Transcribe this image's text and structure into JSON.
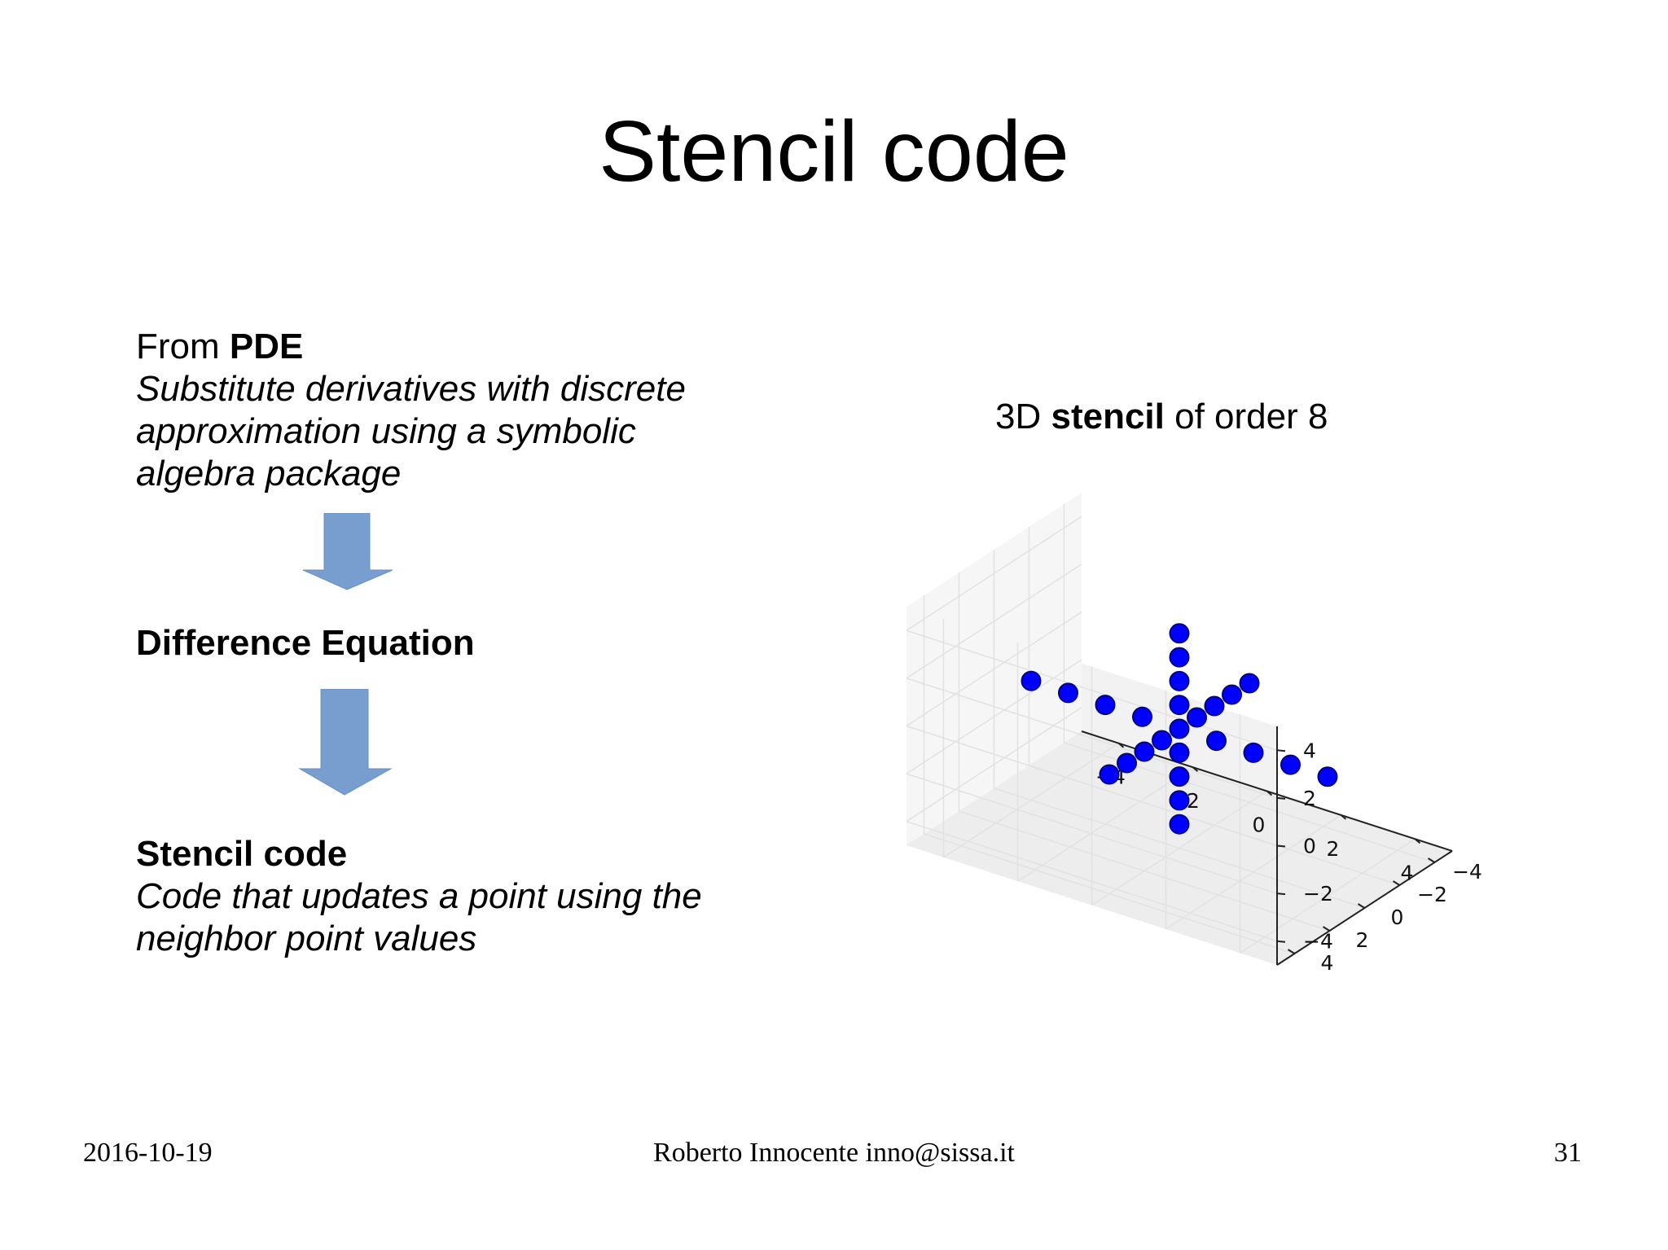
{
  "slide": {
    "title": "Stencil code",
    "block1": {
      "prefix": "From ",
      "bold": "PDE",
      "lines": [
        "Substitute derivatives with discrete",
        "approximation using a symbolic",
        "algebra package"
      ]
    },
    "block2": {
      "bold": "Difference Equation"
    },
    "block3": {
      "bold": "Stencil code",
      "lines": [
        "Code that updates a point using the",
        "neighbor point values"
      ]
    },
    "plot_title": {
      "pre": "3D ",
      "bold": "stencil",
      "mid": " of  ",
      "post": "order 8"
    },
    "arrow_color": "#779ecf"
  },
  "chart_data": {
    "type": "scatter",
    "projection": "3d",
    "title": "",
    "grid": true,
    "xlim": [
      -5,
      5
    ],
    "ylim": [
      -5,
      5
    ],
    "zlim": [
      -5,
      5
    ],
    "x_ticks": [
      "−4",
      "−2",
      "0",
      "2",
      "4"
    ],
    "y_ticks": [
      "−4",
      "−2",
      "0",
      "2",
      "4"
    ],
    "z_ticks": [
      "4",
      "2",
      "0",
      "−2",
      "−4"
    ],
    "marker_color": "#0000ff",
    "points": [
      {
        "x": 0,
        "y": 0,
        "z": 0
      },
      {
        "x": -4,
        "y": 0,
        "z": 0
      },
      {
        "x": -3,
        "y": 0,
        "z": 0
      },
      {
        "x": -2,
        "y": 0,
        "z": 0
      },
      {
        "x": -1,
        "y": 0,
        "z": 0
      },
      {
        "x": 1,
        "y": 0,
        "z": 0
      },
      {
        "x": 2,
        "y": 0,
        "z": 0
      },
      {
        "x": 3,
        "y": 0,
        "z": 0
      },
      {
        "x": 4,
        "y": 0,
        "z": 0
      },
      {
        "x": 0,
        "y": -4,
        "z": 0
      },
      {
        "x": 0,
        "y": -3,
        "z": 0
      },
      {
        "x": 0,
        "y": -2,
        "z": 0
      },
      {
        "x": 0,
        "y": -1,
        "z": 0
      },
      {
        "x": 0,
        "y": 1,
        "z": 0
      },
      {
        "x": 0,
        "y": 2,
        "z": 0
      },
      {
        "x": 0,
        "y": 3,
        "z": 0
      },
      {
        "x": 0,
        "y": 4,
        "z": 0
      },
      {
        "x": 0,
        "y": 0,
        "z": -4
      },
      {
        "x": 0,
        "y": 0,
        "z": -3
      },
      {
        "x": 0,
        "y": 0,
        "z": -2
      },
      {
        "x": 0,
        "y": 0,
        "z": -1
      },
      {
        "x": 0,
        "y": 0,
        "z": 1
      },
      {
        "x": 0,
        "y": 0,
        "z": 2
      },
      {
        "x": 0,
        "y": 0,
        "z": 3
      },
      {
        "x": 0,
        "y": 0,
        "z": 4
      }
    ]
  },
  "footer": {
    "date": "2016-10-19",
    "author": "Roberto Innocente inno@sissa.it",
    "page": "31"
  }
}
